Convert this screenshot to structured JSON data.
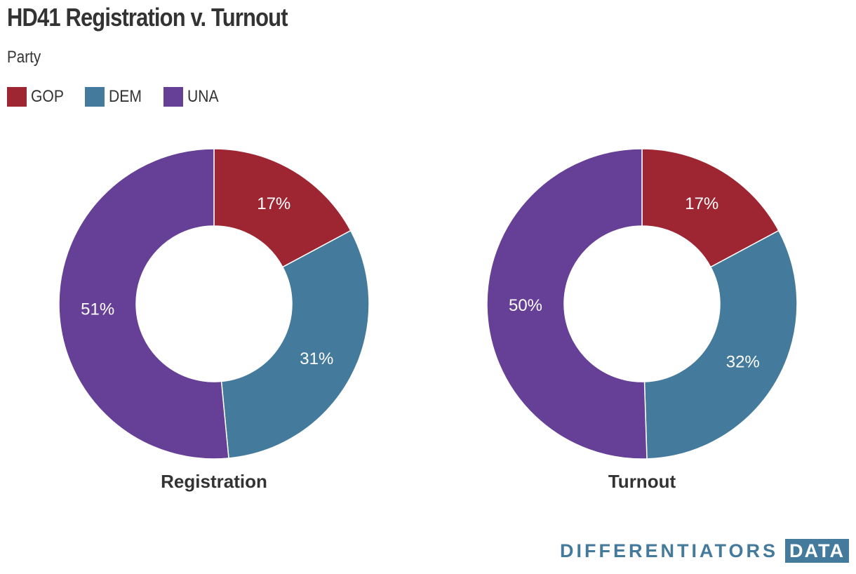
{
  "chart_data": {
    "type": "pie",
    "title": "HD41 Registration v. Turnout",
    "subtitle": "Party",
    "legend": [
      "GOP",
      "DEM",
      "UNA"
    ],
    "colors": {
      "GOP": "#9e2633",
      "DEM": "#447a9c",
      "UNA": "#663f96"
    },
    "charts": [
      {
        "label": "Registration",
        "slices": [
          {
            "name": "GOP",
            "value": 17,
            "label": "17%"
          },
          {
            "name": "DEM",
            "value": 31,
            "label": "31%"
          },
          {
            "name": "UNA",
            "value": 51,
            "label": "51%"
          }
        ]
      },
      {
        "label": "Turnout",
        "slices": [
          {
            "name": "GOP",
            "value": 17,
            "label": "17%"
          },
          {
            "name": "DEM",
            "value": 32,
            "label": "32%"
          },
          {
            "name": "UNA",
            "value": 50,
            "label": "50%"
          }
        ]
      }
    ]
  },
  "brand": {
    "word": "DIFFERENTIATORS",
    "box": "DATA",
    "color": "#447a9c"
  }
}
